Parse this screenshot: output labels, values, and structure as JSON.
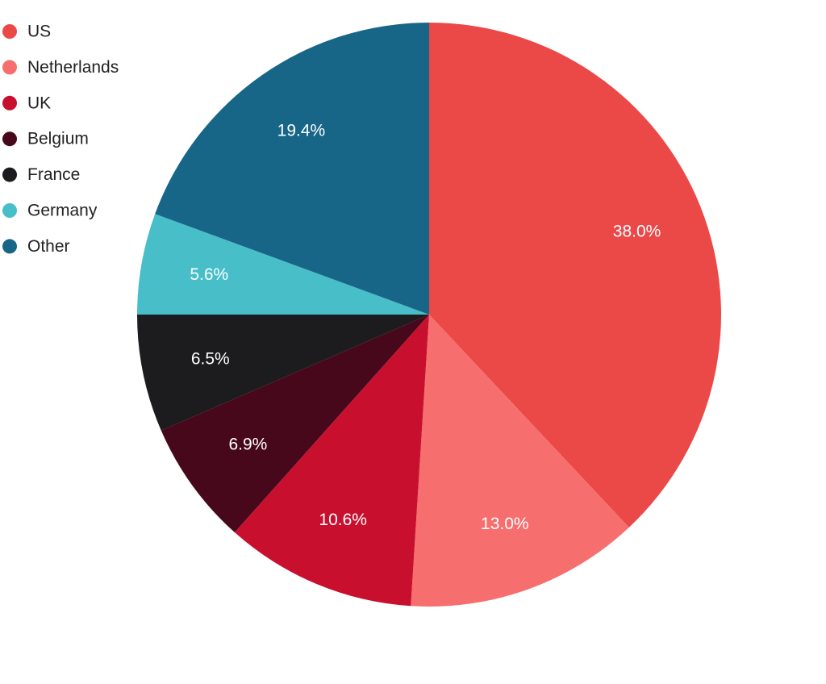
{
  "chart_data": {
    "type": "pie",
    "categories": [
      "US",
      "Netherlands",
      "UK",
      "Belgium",
      "France",
      "Germany",
      "Other"
    ],
    "values": [
      38.0,
      13.0,
      10.6,
      6.9,
      6.5,
      5.6,
      19.4
    ],
    "value_labels": [
      "38.0%",
      "13.0%",
      "10.6%",
      "6.9%",
      "6.5%",
      "5.6%",
      "19.4%"
    ],
    "colors": [
      "#eb4848",
      "#f76e6e",
      "#c8102e",
      "#48081c",
      "#1c1b1d",
      "#48bec8",
      "#176587"
    ],
    "legend": "top-left"
  }
}
